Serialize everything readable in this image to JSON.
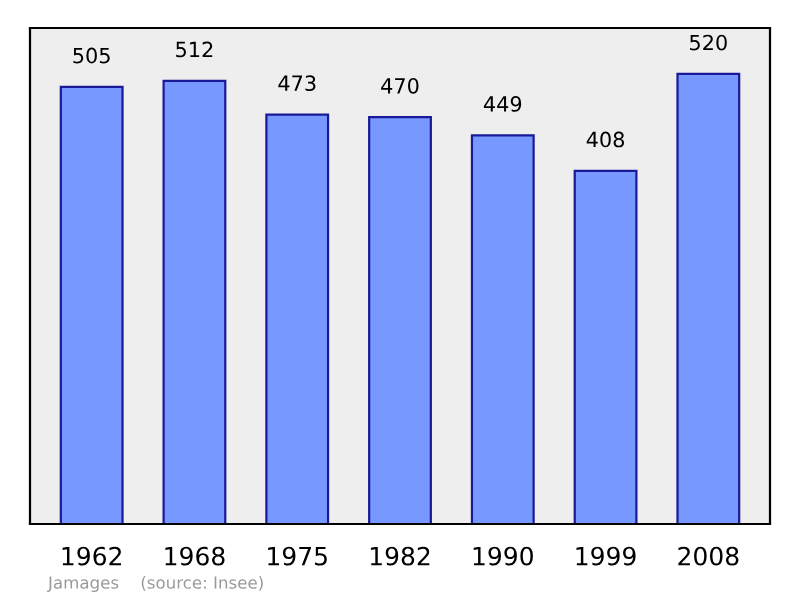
{
  "chart_data": {
    "type": "bar",
    "categories": [
      "1962",
      "1968",
      "1975",
      "1982",
      "1990",
      "1999",
      "2008"
    ],
    "values": [
      505,
      512,
      473,
      470,
      449,
      408,
      520
    ],
    "color": "#7799ff",
    "data_labels": true,
    "ylim": [
      0,
      573
    ],
    "tick_labels": "x",
    "grid": false,
    "legend": false,
    "annotations": [
      "Jamages    (source: Insee)"
    ]
  }
}
